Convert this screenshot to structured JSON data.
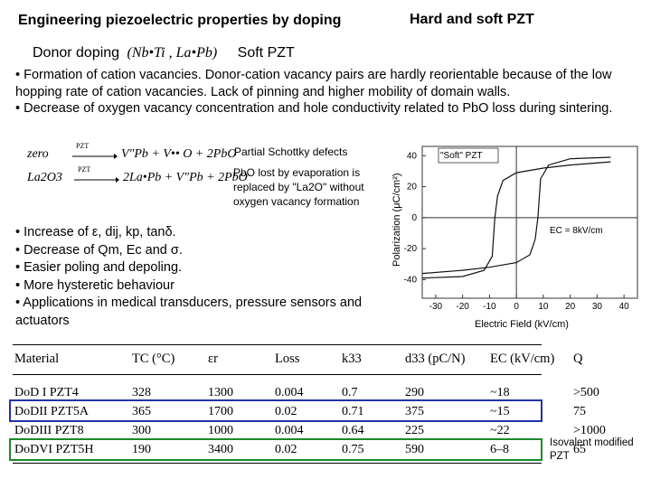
{
  "header": {
    "title_left": "Engineering piezoelectric properties by doping",
    "title_right": "Hard and soft PZT"
  },
  "donor_line": {
    "label": "Donor doping",
    "formula": "(Nb•Ti , La•Pb)",
    "soft": "Soft PZT"
  },
  "bullets_top": [
    "• Formation of cation vacancies. Donor-cation vacancy pairs are hardly reorientable because of the low hopping rate of cation vacancies. Lack of pinning and higher mobility of domain walls.",
    "• Decrease of oxygen vacancy concentration and hole conductivity related to PbO loss during sintering."
  ],
  "equations": {
    "eq1_lhs": "zero",
    "eq1_arrow": "PZT",
    "eq1_rhs": "V″Pb + V•• O + 2PbO",
    "eq2_lhs": "La2O3",
    "eq2_arrow": "PZT",
    "eq2_rhs": "2La•Pb + V″Pb + 2PbO"
  },
  "notes": {
    "schottky": "Partial Schottky defects",
    "pbo_loss": "PbO lost by evaporation is replaced by \"La2O\" without oxygen vacancy formation"
  },
  "bullets_bottom": [
    "• Increase of ε, dij, kp, tanδ.",
    "• Decrease of  Qm,  Ec and σ.",
    "• Easier poling and depoling.",
    "• More hysteretic behaviour",
    "• Applications in medical transducers, pressure sensors and actuators"
  ],
  "chart_data": {
    "type": "line",
    "title": "",
    "legend_label": "\"Soft\" PZT",
    "annotation": "EC = 8kV/cm",
    "xlabel": "Electric Field (kV/cm)",
    "ylabel": "Polarization (μC/cm²)",
    "xlim": [
      -35,
      45
    ],
    "ylim": [
      -52,
      46
    ],
    "x_ticks": [
      -30,
      -20,
      -10,
      0,
      10,
      20,
      30,
      40
    ],
    "y_ticks": [
      40,
      20,
      0,
      -20,
      -40
    ],
    "series": [
      {
        "x": [
          -35,
          -20,
          -12,
          -9,
          -8,
          -7,
          -5,
          0,
          10,
          20,
          35
        ],
        "y": [
          -39,
          -38,
          -34,
          -25,
          0,
          14,
          24,
          29,
          32,
          34,
          36
        ]
      },
      {
        "x": [
          35,
          20,
          12,
          9,
          8,
          7,
          5,
          0,
          -10,
          -20,
          -35
        ],
        "y": [
          39,
          38,
          34,
          25,
          0,
          -14,
          -24,
          -29,
          -32,
          -34,
          -36
        ]
      }
    ]
  },
  "table": {
    "headers": [
      "Material",
      "TC (°C)",
      "εr",
      "Loss",
      "k33",
      "d33 (pC/N)",
      "EC (kV/cm)",
      "Q"
    ],
    "rows": [
      [
        "DoD I PZT4",
        "328",
        "1300",
        "0.004",
        "0.7",
        "290",
        "~18",
        ">500"
      ],
      [
        "DoDII PZT5A",
        "365",
        "1700",
        "0.02",
        "0.71",
        "375",
        "~15",
        "75"
      ],
      [
        "DoDIII PZT8",
        "300",
        "1000",
        "0.004",
        "0.64",
        "225",
        "~22",
        ">1000"
      ],
      [
        "DoDVI PZT5H",
        "190",
        "3400",
        "0.02",
        "0.75",
        "590",
        "6–8",
        "65"
      ]
    ]
  },
  "isovalent_note": "Isovalent modified PZT",
  "colors": {
    "blue_box": "#2233aa",
    "green_box": "#1a8a2a"
  }
}
